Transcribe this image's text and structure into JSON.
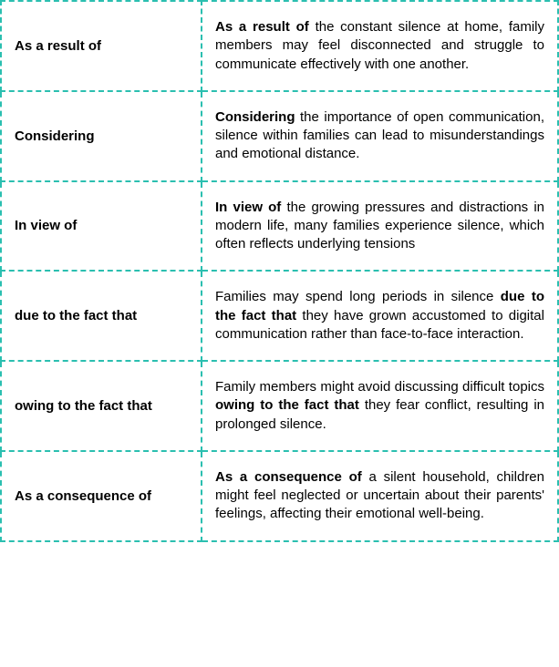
{
  "border_color": "#2bbfb0",
  "rows": [
    {
      "term": "As a result of",
      "example_before": "",
      "example_bold": "As a result of",
      "example_after": " the constant silence at home, family members may feel disconnected and struggle to communicate effectively with one another."
    },
    {
      "term": "Considering",
      "example_before": "",
      "example_bold": "Considering",
      "example_after": " the importance of open communication, silence within families can lead to misunderstandings and emotional distance."
    },
    {
      "term": "In view of",
      "example_before": "",
      "example_bold": "In view of",
      "example_after": " the growing pressures and distractions in modern life, many families experience silence, which often reflects underlying tensions"
    },
    {
      "term": "due to the fact that",
      "example_before": "Families may spend long periods in silence ",
      "example_bold": "due to the fact that",
      "example_after": " they have grown accustomed to digital communication rather than face-to-face interaction."
    },
    {
      "term": "owing to the fact that",
      "example_before": "Family members might avoid discussing difficult topics ",
      "example_bold": "owing to the fact that",
      "example_after": " they fear conflict, resulting in prolonged silence."
    },
    {
      "term": "As a consequence of",
      "example_before": "",
      "example_bold": "As a consequence of",
      "example_after": " a silent household, children might feel neglected or uncertain about their parents' feelings, affecting their emotional well-being."
    }
  ]
}
